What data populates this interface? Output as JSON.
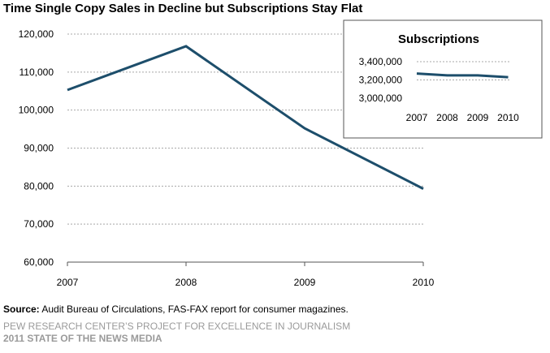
{
  "title": "Time Single Copy Sales in Decline but Subscriptions Stay Flat",
  "chart_data": [
    {
      "type": "line",
      "x": [
        "2007",
        "2008",
        "2009",
        "2010"
      ],
      "series": [
        {
          "values": [
            105300,
            116800,
            95200,
            79300
          ]
        }
      ],
      "ylim": [
        60000,
        120000
      ],
      "yticks": [
        "60,000",
        "70,000",
        "80,000",
        "90,000",
        "100,000",
        "110,000",
        "120,000"
      ],
      "grid": true,
      "line_color": "#1d4e6b"
    },
    {
      "type": "line",
      "title": "Subscriptions",
      "x": [
        "2007",
        "2008",
        "2009",
        "2010"
      ],
      "series": [
        {
          "values": [
            3270000,
            3250000,
            3250000,
            3230000
          ]
        }
      ],
      "ylim": [
        3000000,
        3400000
      ],
      "yticks": [
        "3,000,000",
        "3,200,000",
        "3,400,000"
      ],
      "grid": true,
      "line_color": "#1d4e6b"
    }
  ],
  "source_label": "Source:",
  "source_text": "Audit Bureau of Circulations, FAS-FAX report for consumer magazines.",
  "org_line1": "PEW RESEARCH CENTER’S PROJECT FOR EXCELLENCE IN JOURNALISM",
  "org_line2": "2011 STATE OF THE NEWS MEDIA"
}
